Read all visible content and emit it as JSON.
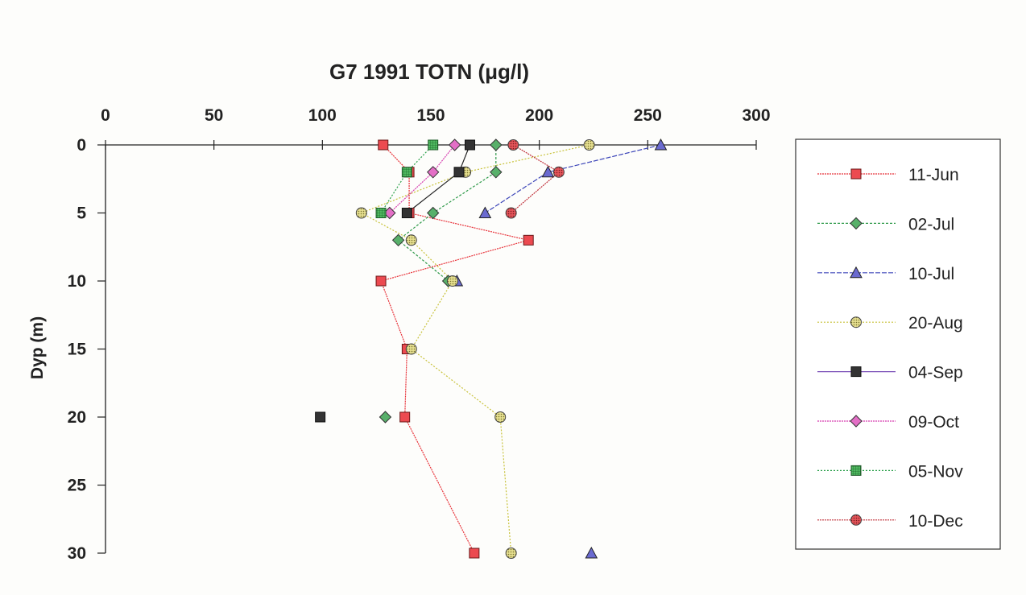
{
  "chart_data": {
    "type": "scatter",
    "title": "G7 1991 TOTN (μg/l)",
    "xlabel": "",
    "ylabel": "Dyp (m)",
    "xlim": [
      0,
      300
    ],
    "ylim": [
      0,
      30
    ],
    "x_axis_position": "top",
    "y_axis_inverted": true,
    "x_ticks": [
      "0",
      "50",
      "100",
      "150",
      "200",
      "250",
      "300"
    ],
    "y_ticks": [
      "0",
      "5",
      "10",
      "15",
      "20",
      "25",
      "30"
    ],
    "grid": false,
    "legend_position": "right",
    "series": [
      {
        "name": "11-Jun",
        "color": "#e8333a",
        "dash": "2,1",
        "marker": "square",
        "points": [
          [
            128,
            0
          ],
          [
            140,
            2
          ],
          [
            140,
            5
          ],
          [
            195,
            7
          ],
          [
            127,
            10
          ],
          [
            139,
            15
          ],
          [
            138,
            20
          ],
          [
            170,
            30
          ]
        ]
      },
      {
        "name": "02-Jul",
        "color": "#2f9a4a",
        "dash": "3,2",
        "marker": "diamond",
        "points": [
          [
            180,
            0
          ],
          [
            180,
            2
          ],
          [
            151,
            5
          ],
          [
            135,
            7
          ],
          [
            158,
            10
          ]
        ],
        "extra_points": [
          [
            129,
            20
          ]
        ]
      },
      {
        "name": "10-Jul",
        "color": "#3b44b8",
        "dash": "6,2",
        "marker": "triangle",
        "points": [
          [
            256,
            0
          ],
          [
            204,
            2
          ],
          [
            175,
            5
          ]
        ],
        "extra_points": [
          [
            162,
            10
          ],
          [
            224,
            30
          ]
        ]
      },
      {
        "name": "20-Aug",
        "color": "#c8c23a",
        "dash": "2,2",
        "marker": "circle-dotted",
        "points": [
          [
            223,
            0
          ],
          [
            166,
            2
          ],
          [
            118,
            5
          ],
          [
            141,
            7
          ],
          [
            160,
            10
          ],
          [
            141,
            15
          ],
          [
            182,
            20
          ],
          [
            187,
            30
          ]
        ]
      },
      {
        "name": "04-Sep",
        "color": "#222222",
        "dash": "",
        "legend_line_color": "#7a4fb8",
        "marker": "square-dark",
        "points": [
          [
            168,
            0
          ],
          [
            163,
            2
          ],
          [
            139,
            5
          ]
        ],
        "extra_points": [
          [
            99,
            20
          ]
        ]
      },
      {
        "name": "09-Oct",
        "color": "#d63fb0",
        "dash": "2,1",
        "marker": "diamond",
        "points": [
          [
            161,
            0
          ],
          [
            151,
            2
          ],
          [
            131,
            5
          ]
        ]
      },
      {
        "name": "05-Nov",
        "color": "#2aa04a",
        "dash": "2,2",
        "marker": "square-grid",
        "points": [
          [
            151,
            0
          ],
          [
            139,
            2
          ],
          [
            127,
            5
          ]
        ]
      },
      {
        "name": "10-Dec",
        "color": "#c0303a",
        "dash": "2,1",
        "marker": "circle-dotted",
        "points": [
          [
            188,
            0
          ],
          [
            209,
            2
          ],
          [
            187,
            5
          ]
        ]
      }
    ]
  }
}
